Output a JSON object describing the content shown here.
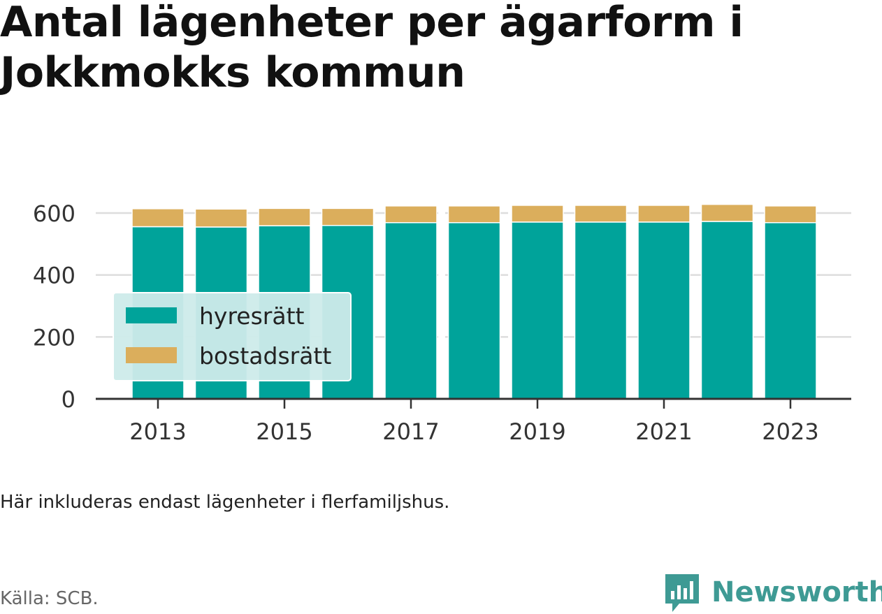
{
  "title": "Antal lägenheter per ägarform i Jokkmokks kommun",
  "note": "Här inkluderas endast lägenheter i flerfamiljshus.",
  "source": "Källa: SCB.",
  "logo_text": "Newsworthy",
  "colors": {
    "hyresratt": "#00a39a",
    "bostadsratt": "#dbae5c",
    "legend_bg": "#cdebea",
    "logo": "#3e9a94"
  },
  "chart_data": {
    "type": "bar",
    "stacked": true,
    "categories": [
      "2013",
      "2014",
      "2015",
      "2016",
      "2017",
      "2018",
      "2019",
      "2020",
      "2021",
      "2022",
      "2023"
    ],
    "x_tick_labels": [
      "2013",
      "2015",
      "2017",
      "2019",
      "2021",
      "2023"
    ],
    "series": [
      {
        "name": "hyresrätt",
        "values": [
          556,
          555,
          559,
          560,
          569,
          569,
          571,
          571,
          571,
          573,
          569
        ]
      },
      {
        "name": "bostadsrätt",
        "values": [
          58,
          58,
          56,
          55,
          54,
          54,
          54,
          54,
          54,
          55,
          54
        ]
      }
    ],
    "y_ticks": [
      0,
      200,
      400,
      600
    ],
    "ylim": [
      0,
      650
    ],
    "grid": true,
    "legend": "bottom-left"
  }
}
